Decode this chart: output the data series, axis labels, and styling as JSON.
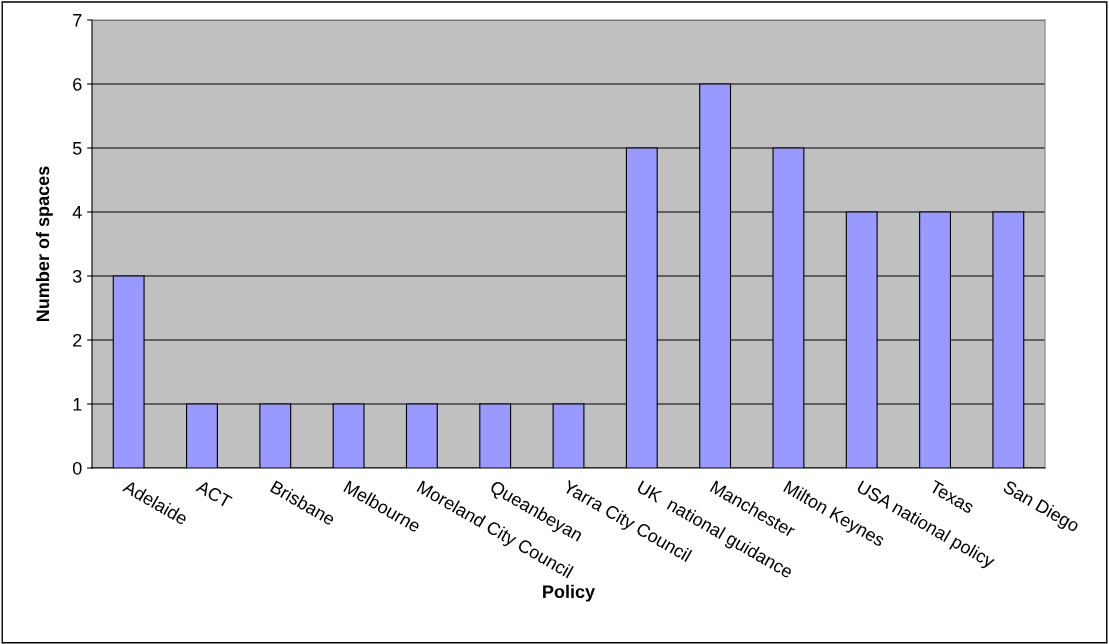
{
  "chart_data": {
    "type": "bar",
    "xlabel": "Policy",
    "ylabel": "Number of spaces",
    "categories": [
      "Adelaide",
      "ACT",
      "Brisbane",
      "Melbourne",
      "Moreland City Council",
      "Queanbeyan",
      "Yarra City Council",
      "UK  national guidance",
      "Manchester",
      "Milton Keynes",
      "USA national policy",
      "Texas",
      "San Diego"
    ],
    "values": [
      3,
      1,
      1,
      1,
      1,
      1,
      1,
      5,
      6,
      5,
      4,
      4,
      4
    ],
    "color": "#9999ff",
    "ylim": [
      0,
      7
    ],
    "yticks": [
      0,
      1,
      2,
      3,
      4,
      5,
      6,
      7
    ],
    "grid": "y"
  }
}
